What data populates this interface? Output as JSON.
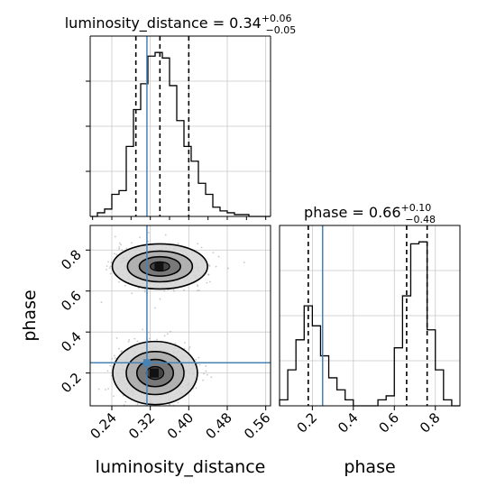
{
  "chart_data": [
    {
      "type": "histogram",
      "panel": "luminosity_distance marginal",
      "title": "luminosity_distance = 0.34",
      "title_sup": "+0.06",
      "title_sub": "−0.05",
      "x_range": [
        0.195,
        0.57
      ],
      "x_ticks": [
        0.24,
        0.32,
        0.4,
        0.48,
        0.56
      ],
      "quantiles": [
        0.29,
        0.34,
        0.4
      ],
      "truth": 0.313,
      "bins": [
        0.195,
        0.21,
        0.225,
        0.24,
        0.255,
        0.27,
        0.285,
        0.3,
        0.315,
        0.33,
        0.345,
        0.36,
        0.375,
        0.39,
        0.405,
        0.42,
        0.435,
        0.45,
        0.465,
        0.48,
        0.495,
        0.51,
        0.525,
        0.54,
        0.555,
        0.57
      ],
      "counts": [
        0,
        2,
        4,
        12,
        14,
        38,
        58,
        72,
        87,
        89,
        86,
        71,
        52,
        38,
        30,
        18,
        12,
        5,
        3,
        2,
        1,
        1,
        0,
        0,
        0
      ],
      "grid": true
    },
    {
      "type": "histogram",
      "panel": "phase marginal",
      "title": "phase = 0.66",
      "title_sup": "+0.10",
      "title_sub": "−0.48",
      "x_range": [
        0.04,
        0.92
      ],
      "x_ticks": [
        0.2,
        0.4,
        0.6,
        0.8
      ],
      "xlabel": "phase",
      "quantiles": [
        0.18,
        0.66,
        0.76
      ],
      "truth": 0.25,
      "bins": [
        0.04,
        0.08,
        0.12,
        0.16,
        0.2,
        0.24,
        0.28,
        0.32,
        0.36,
        0.4,
        0.44,
        0.48,
        0.52,
        0.56,
        0.6,
        0.64,
        0.68,
        0.72,
        0.76,
        0.8,
        0.84,
        0.88,
        0.92
      ],
      "counts": [
        3,
        18,
        33,
        50,
        40,
        25,
        14,
        8,
        3,
        0,
        0,
        0,
        3,
        5,
        29,
        55,
        81,
        82,
        38,
        18,
        3,
        0
      ],
      "grid": true
    },
    {
      "type": "scatter",
      "panel": "2D density",
      "xlabel": "luminosity_distance",
      "ylabel": "phase",
      "x_range": [
        0.195,
        0.57
      ],
      "y_range": [
        0.04,
        0.92
      ],
      "x_ticks": [
        0.24,
        0.32,
        0.4,
        0.48,
        0.56
      ],
      "y_ticks": [
        0.2,
        0.4,
        0.6,
        0.8
      ],
      "truth": [
        0.313,
        0.25
      ],
      "modes": [
        {
          "x": 0.34,
          "y": 0.72,
          "sx": 0.045,
          "sy": 0.05
        },
        {
          "x": 0.33,
          "y": 0.2,
          "sx": 0.04,
          "sy": 0.07
        }
      ],
      "grid": true
    }
  ],
  "style": {
    "truth_color": "#4682b4",
    "line_color": "#000000",
    "grid_color": "#c8c8c8"
  }
}
